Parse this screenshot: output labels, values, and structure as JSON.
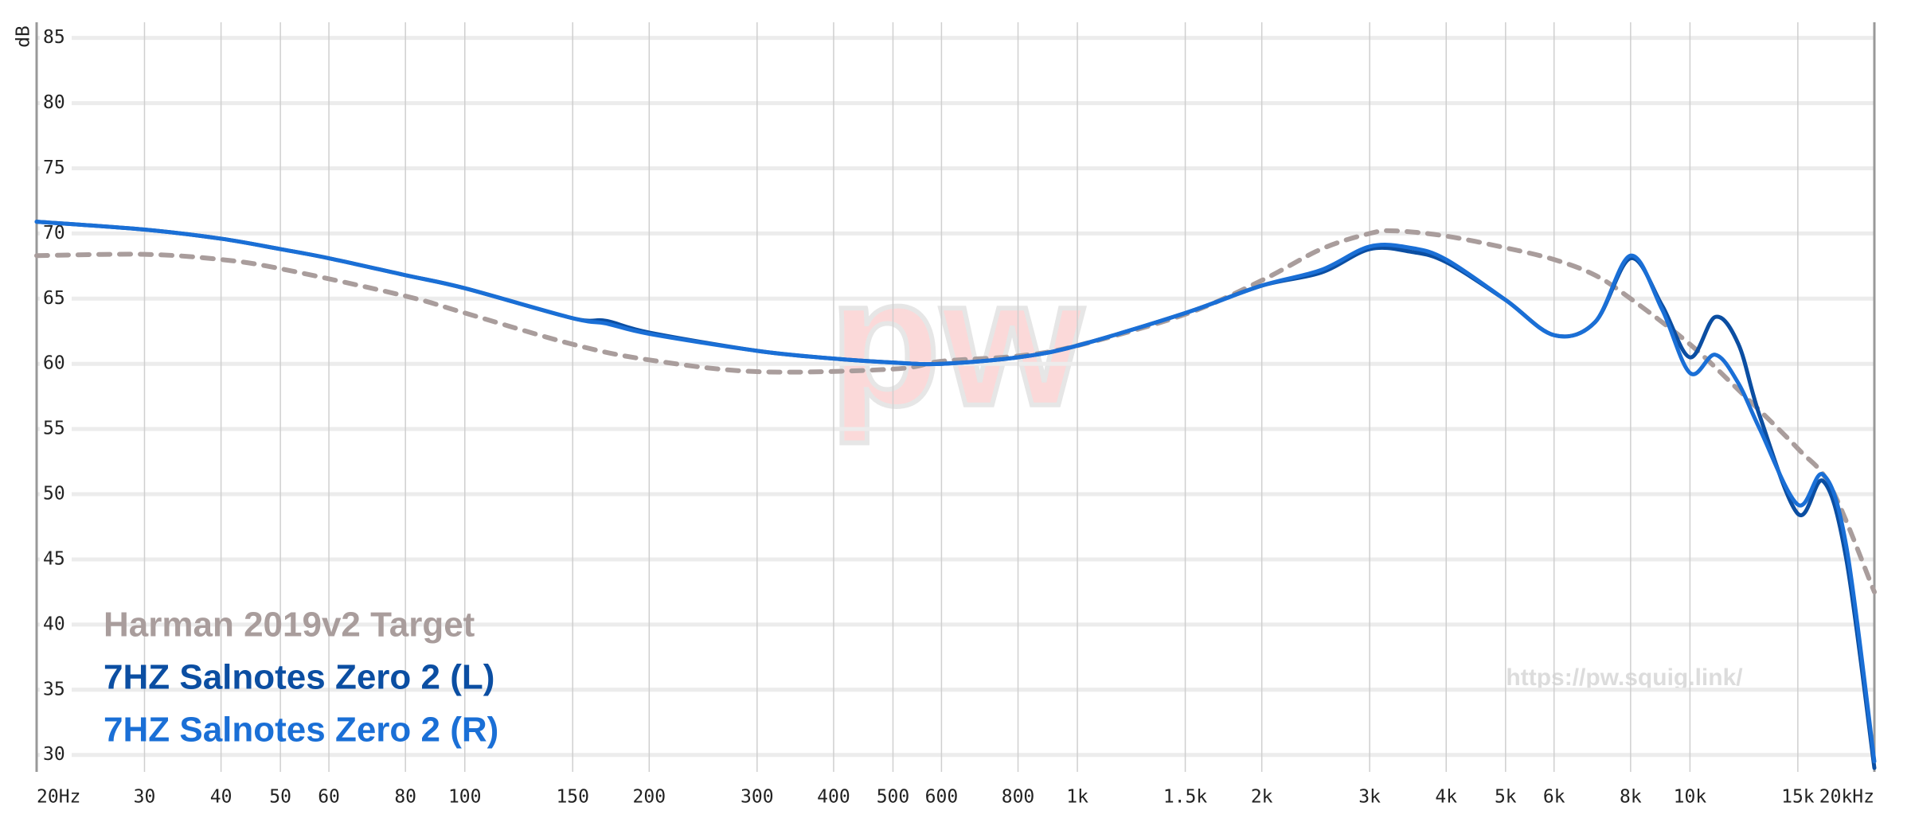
{
  "chart_data": {
    "type": "line",
    "y_label": "dB",
    "xscale": "log",
    "grid": true,
    "xlim": [
      20,
      20000
    ],
    "ylim": [
      28.7,
      86.2
    ],
    "xticks": [
      {
        "value": 20,
        "label": "20Hz"
      },
      30,
      40,
      50,
      60,
      80,
      100,
      150,
      200,
      300,
      400,
      500,
      600,
      800,
      {
        "value": 1000,
        "label": "1k"
      },
      {
        "value": 1500,
        "label": "1.5k"
      },
      {
        "value": 2000,
        "label": "2k"
      },
      {
        "value": 3000,
        "label": "3k"
      },
      {
        "value": 4000,
        "label": "4k"
      },
      {
        "value": 5000,
        "label": "5k"
      },
      {
        "value": 6000,
        "label": "6k"
      },
      {
        "value": 8000,
        "label": "8k"
      },
      {
        "value": 10000,
        "label": "10k"
      },
      {
        "value": 15000,
        "label": "15k"
      },
      {
        "value": 20000,
        "label": "20kHz"
      }
    ],
    "yticks": [
      30,
      35,
      40,
      45,
      50,
      55,
      60,
      65,
      70,
      75,
      80,
      85
    ],
    "logo_text": "pw",
    "source_url": "https://pw.squig.link/",
    "series": [
      {
        "name": "Harman 2019v2 Target",
        "color": "#a99d9c",
        "dashed": true,
        "x": [
          20,
          30,
          40,
          50,
          80,
          100,
          150,
          200,
          300,
          500,
          600,
          800,
          1000,
          1500,
          2000,
          2500,
          3000,
          3300,
          4000,
          5000,
          6000,
          7000,
          8000,
          10000,
          12000,
          15000,
          17000,
          20000
        ],
        "values": [
          68.3,
          68.4,
          68.0,
          67.3,
          65.2,
          63.9,
          61.5,
          60.3,
          59.4,
          59.6,
          60.2,
          60.6,
          61.4,
          63.8,
          66.4,
          68.8,
          70.0,
          70.2,
          69.8,
          68.9,
          68.0,
          66.8,
          65.0,
          61.5,
          58.0,
          53.5,
          50.5,
          42.5
        ]
      },
      {
        "name": "7HZ Salnotes Zero 2 (L)",
        "color": "#0b4ea2",
        "dashed": false,
        "x": [
          20,
          30,
          40,
          50,
          60,
          80,
          100,
          150,
          170,
          200,
          300,
          400,
          500,
          600,
          800,
          1000,
          1500,
          2000,
          2500,
          3000,
          3500,
          4000,
          5000,
          6000,
          7000,
          8000,
          9000,
          10000,
          11000,
          12000,
          13000,
          15000,
          16500,
          18000,
          20000
        ],
        "values": [
          70.9,
          70.3,
          69.6,
          68.8,
          68.1,
          66.8,
          65.8,
          63.5,
          63.3,
          62.4,
          61.0,
          60.4,
          60.1,
          60.0,
          60.5,
          61.4,
          63.9,
          66.0,
          67.0,
          68.8,
          68.6,
          67.8,
          64.9,
          62.2,
          63.2,
          68.1,
          64.5,
          60.5,
          63.6,
          61.5,
          56.0,
          48.5,
          51.0,
          45.0,
          29.0
        ]
      },
      {
        "name": "7HZ Salnotes Zero 2 (R)",
        "color": "#1a6fd6",
        "dashed": false,
        "x": [
          20,
          30,
          40,
          50,
          60,
          80,
          100,
          150,
          170,
          200,
          300,
          400,
          500,
          600,
          800,
          1000,
          1500,
          2000,
          2500,
          3000,
          3500,
          4000,
          5000,
          6000,
          7000,
          8000,
          9000,
          10000,
          11000,
          12000,
          13000,
          15000,
          16500,
          18000,
          20000
        ],
        "values": [
          70.9,
          70.3,
          69.6,
          68.8,
          68.1,
          66.8,
          65.8,
          63.5,
          63.1,
          62.3,
          61.0,
          60.4,
          60.1,
          60.0,
          60.5,
          61.4,
          63.9,
          66.0,
          67.2,
          69.0,
          68.9,
          68.0,
          64.9,
          62.2,
          63.2,
          68.3,
          64.2,
          59.3,
          60.7,
          58.5,
          55.0,
          49.2,
          51.5,
          46.0,
          29.5
        ]
      }
    ]
  }
}
